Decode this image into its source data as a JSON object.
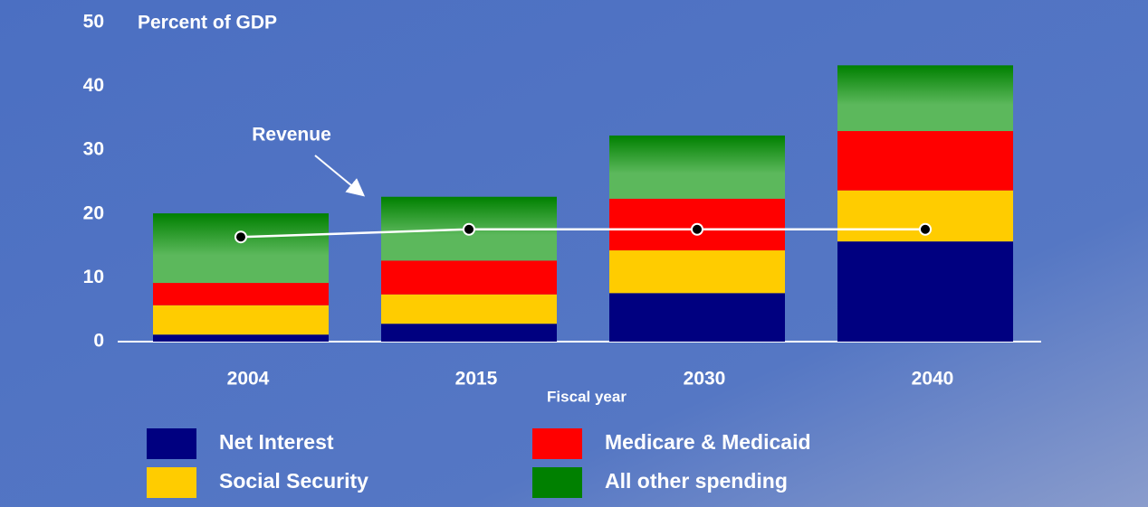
{
  "chart_data": {
    "type": "bar",
    "stacked": true,
    "ylabel": "Percent of GDP",
    "xlabel": "Fiscal year",
    "categories": [
      "2004",
      "2015",
      "2030",
      "2040"
    ],
    "series": [
      {
        "name": "Net Interest",
        "color": "#000080",
        "values": [
          1.1,
          2.8,
          7.6,
          15.7
        ]
      },
      {
        "name": "Social Security",
        "color": "#ffcc00",
        "values": [
          4.6,
          4.6,
          6.7,
          8.0
        ]
      },
      {
        "name": "Medicare & Medicaid",
        "color": "#ff0000",
        "values": [
          3.5,
          5.3,
          8.1,
          9.3
        ]
      },
      {
        "name": "All other spending",
        "color": "#008000",
        "gradient": true,
        "values": [
          10.9,
          10.0,
          9.9,
          10.3
        ]
      }
    ],
    "line": {
      "name": "Revenue",
      "color": "#ffffff",
      "values": [
        16.4,
        17.6,
        17.6,
        17.6
      ]
    },
    "ylim": [
      0,
      50
    ],
    "yticks": [
      0,
      10,
      20,
      30,
      40,
      50
    ]
  }
}
